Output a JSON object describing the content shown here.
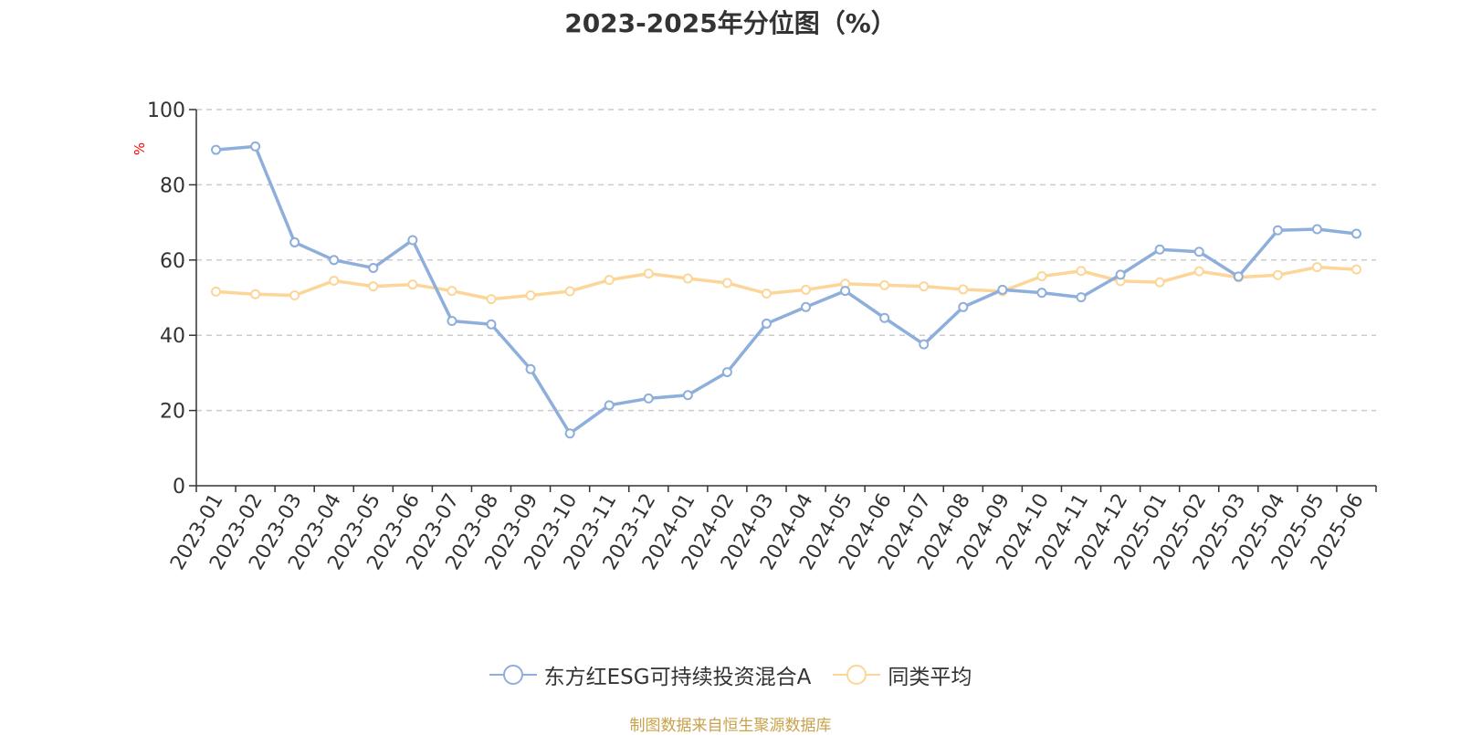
{
  "chart_data": {
    "type": "line",
    "title": "2023-2025年分位图（%）",
    "ylabel": "%",
    "ylim": [
      0,
      100
    ],
    "yticks": [
      "0",
      "20",
      "40",
      "60",
      "80",
      "100"
    ],
    "grid": "horizontal-dashed",
    "legend_position": "bottom",
    "categories": [
      "2023-01",
      "2023-02",
      "2023-03",
      "2023-04",
      "2023-05",
      "2023-06",
      "2023-07",
      "2023-08",
      "2023-09",
      "2023-10",
      "2023-11",
      "2023-12",
      "2024-01",
      "2024-02",
      "2024-03",
      "2024-04",
      "2024-05",
      "2024-06",
      "2024-07",
      "2024-08",
      "2024-09",
      "2024-10",
      "2024-11",
      "2024-12",
      "2025-01",
      "2025-02",
      "2025-03",
      "2025-04",
      "2025-05",
      "2025-06"
    ],
    "series": [
      {
        "name": "东方红ESG可持续投资混合A",
        "color": "#8eaedb",
        "values": [
          89.3,
          90.2,
          64.7,
          60.0,
          57.9,
          65.3,
          43.8,
          42.9,
          31.0,
          13.9,
          21.4,
          23.2,
          24.1,
          30.2,
          43.1,
          47.5,
          51.8,
          44.6,
          37.6,
          47.5,
          52.1,
          51.3,
          50.1,
          56.1,
          62.8,
          62.2,
          55.6,
          67.9,
          68.2,
          67.0
        ]
      },
      {
        "name": "同类平均",
        "color": "#fcd699",
        "values": [
          51.6,
          50.9,
          50.6,
          54.5,
          53.0,
          53.5,
          51.8,
          49.6,
          50.6,
          51.7,
          54.7,
          56.4,
          55.1,
          53.9,
          51.1,
          52.1,
          53.7,
          53.3,
          53.0,
          52.2,
          51.7,
          55.7,
          57.1,
          54.4,
          54.1,
          57.0,
          55.4,
          56.0,
          58.1,
          57.5
        ]
      }
    ]
  },
  "source_note": "制图数据来自恒生聚源数据库"
}
